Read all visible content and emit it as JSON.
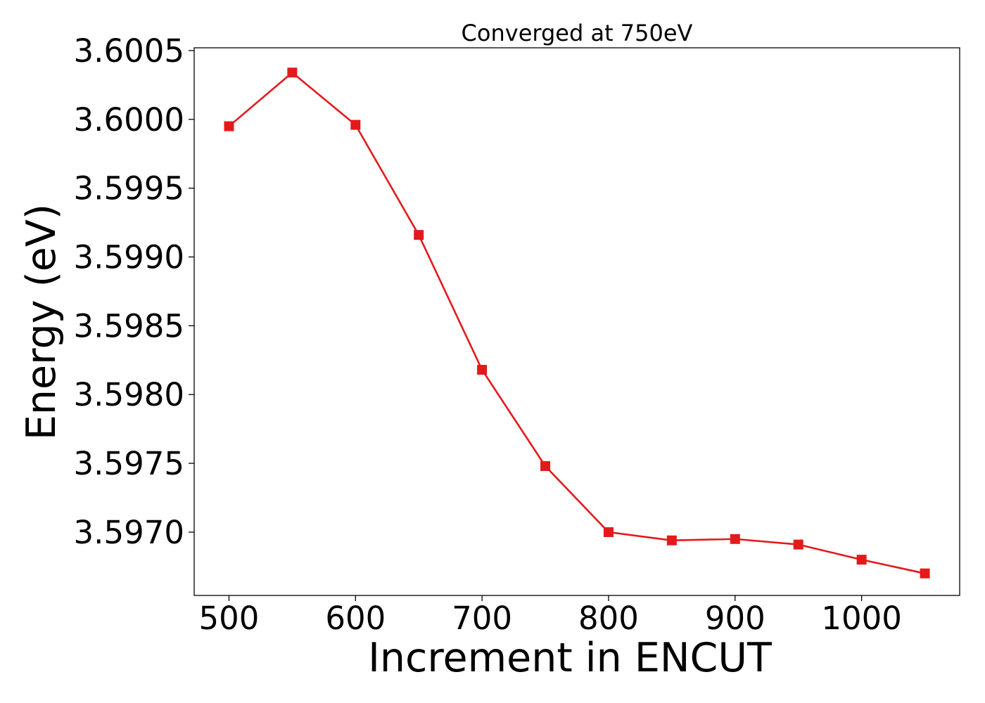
{
  "chart_data": {
    "type": "line",
    "title": "Converged at 750eV",
    "xlabel": "Increment in ENCUT",
    "ylabel": "Energy (eV)",
    "xlim": [
      472.5,
      1077.5
    ],
    "ylim": [
      3.59654,
      3.60052
    ],
    "xticks": [
      500,
      600,
      700,
      800,
      900,
      1000
    ],
    "xtick_labels": [
      "500",
      "600",
      "700",
      "800",
      "900",
      "1000"
    ],
    "yticks": [
      3.597,
      3.5975,
      3.598,
      3.5985,
      3.599,
      3.5995,
      3.6,
      3.6005
    ],
    "ytick_labels": [
      "3.5970",
      "3.5975",
      "3.5980",
      "3.5985",
      "3.5990",
      "3.5995",
      "3.6000",
      "3.6005"
    ],
    "grid": false,
    "series": [
      {
        "color": "#e31a1c",
        "marker": "square",
        "x": [
          500,
          550,
          600,
          650,
          700,
          750,
          800,
          850,
          900,
          950,
          1000,
          1050
        ],
        "y": [
          3.59995,
          3.60034,
          3.59996,
          3.59916,
          3.59818,
          3.59748,
          3.597,
          3.59694,
          3.59695,
          3.59691,
          3.5968,
          3.5967
        ]
      }
    ]
  }
}
